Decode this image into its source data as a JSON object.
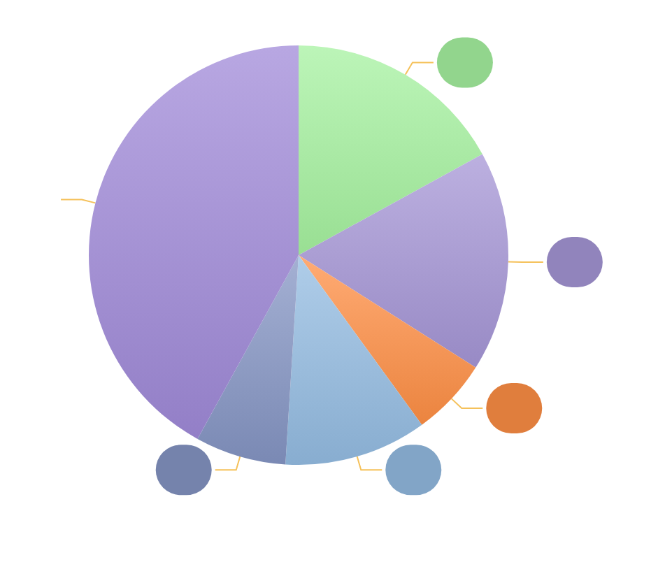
{
  "chart_data": {
    "type": "pie",
    "values": [
      17,
      17,
      6,
      11,
      7,
      42
    ],
    "colors": [
      "#a6f2a0",
      "#a596d6",
      "#ff8f45",
      "#94bce2",
      "#8595c4",
      "#a08ad8"
    ]
  }
}
